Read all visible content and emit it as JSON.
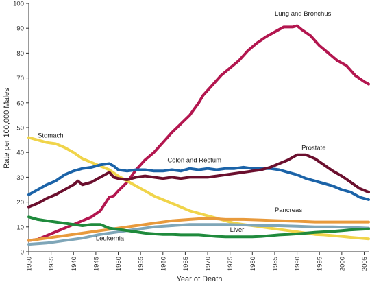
{
  "chart_data": {
    "type": "line",
    "xlabel": "Year of Death",
    "ylabel": "Rate per 100,000 Males",
    "xlim": [
      1930,
      2006
    ],
    "ylim": [
      0,
      100
    ],
    "x_ticks": [
      1930,
      1935,
      1940,
      1945,
      1950,
      1955,
      1960,
      1965,
      1970,
      1975,
      1980,
      1985,
      1990,
      1995,
      2000,
      2005
    ],
    "y_ticks": [
      0,
      10,
      20,
      30,
      40,
      50,
      60,
      70,
      80,
      90,
      100
    ],
    "grid": false,
    "series": [
      {
        "name": "Lung and Bronchus",
        "color": "#b3164f",
        "label_at": [
          1985,
          95
        ],
        "points": [
          [
            1930,
            4.5
          ],
          [
            1932,
            5
          ],
          [
            1934,
            6.5
          ],
          [
            1936,
            8
          ],
          [
            1938,
            9.5
          ],
          [
            1940,
            11
          ],
          [
            1942,
            12.5
          ],
          [
            1944,
            14
          ],
          [
            1946,
            16.5
          ],
          [
            1948,
            22
          ],
          [
            1949,
            22.5
          ],
          [
            1950,
            24.5
          ],
          [
            1952,
            28
          ],
          [
            1954,
            33
          ],
          [
            1956,
            37
          ],
          [
            1958,
            40
          ],
          [
            1960,
            44
          ],
          [
            1962,
            48
          ],
          [
            1964,
            51.5
          ],
          [
            1966,
            55
          ],
          [
            1968,
            60
          ],
          [
            1969,
            63
          ],
          [
            1971,
            67
          ],
          [
            1973,
            71
          ],
          [
            1975,
            74
          ],
          [
            1977,
            77
          ],
          [
            1979,
            81
          ],
          [
            1981,
            84
          ],
          [
            1983,
            86.5
          ],
          [
            1985,
            88.5
          ],
          [
            1987,
            90.5
          ],
          [
            1989,
            90.5
          ],
          [
            1990,
            91
          ],
          [
            1991,
            89.5
          ],
          [
            1993,
            87
          ],
          [
            1995,
            83
          ],
          [
            1997,
            80
          ],
          [
            1999,
            77
          ],
          [
            2001,
            75
          ],
          [
            2003,
            71
          ],
          [
            2005,
            68.5
          ],
          [
            2006,
            67.5
          ]
        ]
      },
      {
        "name": "Stomach",
        "color": "#f0d44a",
        "label_at": [
          1932,
          46
        ],
        "points": [
          [
            1930,
            46
          ],
          [
            1932,
            45
          ],
          [
            1934,
            44
          ],
          [
            1936,
            43.5
          ],
          [
            1938,
            42
          ],
          [
            1940,
            40
          ],
          [
            1942,
            37.5
          ],
          [
            1944,
            36
          ],
          [
            1946,
            34.5
          ],
          [
            1948,
            33
          ],
          [
            1950,
            30.5
          ],
          [
            1952,
            28.5
          ],
          [
            1954,
            26.5
          ],
          [
            1956,
            24.5
          ],
          [
            1958,
            22.5
          ],
          [
            1960,
            21
          ],
          [
            1962,
            19.5
          ],
          [
            1964,
            18
          ],
          [
            1966,
            16.5
          ],
          [
            1968,
            15.5
          ],
          [
            1970,
            14.5
          ],
          [
            1972,
            13.5
          ],
          [
            1974,
            12.5
          ],
          [
            1976,
            11.5
          ],
          [
            1978,
            11
          ],
          [
            1980,
            10.5
          ],
          [
            1982,
            10
          ],
          [
            1984,
            9.5
          ],
          [
            1986,
            9
          ],
          [
            1988,
            8.5
          ],
          [
            1990,
            8
          ],
          [
            1992,
            7.5
          ],
          [
            1994,
            7
          ],
          [
            1996,
            6.8
          ],
          [
            1998,
            6.5
          ],
          [
            2000,
            6.2
          ],
          [
            2002,
            5.8
          ],
          [
            2004,
            5.5
          ],
          [
            2006,
            5.2
          ]
        ]
      },
      {
        "name": "Colon and Rectum",
        "color": "#1b63a8",
        "label_at": [
          1961,
          36
        ],
        "points": [
          [
            1930,
            23
          ],
          [
            1932,
            25
          ],
          [
            1934,
            27
          ],
          [
            1936,
            28.5
          ],
          [
            1938,
            31
          ],
          [
            1940,
            32.5
          ],
          [
            1942,
            33.5
          ],
          [
            1944,
            34
          ],
          [
            1946,
            35
          ],
          [
            1948,
            35.5
          ],
          [
            1949,
            34.5
          ],
          [
            1950,
            33
          ],
          [
            1952,
            32.5
          ],
          [
            1954,
            33
          ],
          [
            1956,
            33
          ],
          [
            1958,
            32.5
          ],
          [
            1960,
            32.5
          ],
          [
            1962,
            33
          ],
          [
            1964,
            32.5
          ],
          [
            1966,
            33.5
          ],
          [
            1968,
            33
          ],
          [
            1970,
            33.5
          ],
          [
            1972,
            33
          ],
          [
            1974,
            33.5
          ],
          [
            1976,
            33.5
          ],
          [
            1978,
            34
          ],
          [
            1980,
            33.5
          ],
          [
            1982,
            33.5
          ],
          [
            1984,
            33.5
          ],
          [
            1986,
            33
          ],
          [
            1988,
            32
          ],
          [
            1990,
            31
          ],
          [
            1992,
            29.5
          ],
          [
            1994,
            28.5
          ],
          [
            1996,
            27.5
          ],
          [
            1998,
            26.5
          ],
          [
            2000,
            25
          ],
          [
            2002,
            24
          ],
          [
            2004,
            22
          ],
          [
            2006,
            21
          ]
        ]
      },
      {
        "name": "Prostate",
        "color": "#6b0f2e",
        "label_at": [
          1991,
          41
        ],
        "points": [
          [
            1930,
            18
          ],
          [
            1932,
            19.5
          ],
          [
            1934,
            21.5
          ],
          [
            1936,
            23
          ],
          [
            1938,
            25
          ],
          [
            1940,
            27
          ],
          [
            1941,
            28.5
          ],
          [
            1942,
            27
          ],
          [
            1944,
            28
          ],
          [
            1946,
            30
          ],
          [
            1948,
            32
          ],
          [
            1949,
            30
          ],
          [
            1950,
            29.5
          ],
          [
            1952,
            29
          ],
          [
            1954,
            30
          ],
          [
            1956,
            30.5
          ],
          [
            1958,
            30
          ],
          [
            1960,
            29.5
          ],
          [
            1962,
            30
          ],
          [
            1964,
            29.5
          ],
          [
            1966,
            30
          ],
          [
            1968,
            30
          ],
          [
            1970,
            30
          ],
          [
            1972,
            30.5
          ],
          [
            1974,
            31
          ],
          [
            1976,
            31.5
          ],
          [
            1978,
            32
          ],
          [
            1980,
            32.5
          ],
          [
            1982,
            33
          ],
          [
            1984,
            34
          ],
          [
            1986,
            35.5
          ],
          [
            1988,
            37
          ],
          [
            1990,
            39
          ],
          [
            1992,
            39
          ],
          [
            1994,
            37.5
          ],
          [
            1996,
            35
          ],
          [
            1998,
            32.5
          ],
          [
            2000,
            30.5
          ],
          [
            2002,
            28
          ],
          [
            2004,
            25.5
          ],
          [
            2006,
            24
          ]
        ]
      },
      {
        "name": "Pancreas",
        "color": "#e89a3c",
        "label_at": [
          1985,
          16
        ],
        "points": [
          [
            1930,
            4.5
          ],
          [
            1934,
            5.5
          ],
          [
            1938,
            6.5
          ],
          [
            1942,
            7.5
          ],
          [
            1946,
            8.5
          ],
          [
            1950,
            9.5
          ],
          [
            1954,
            10.5
          ],
          [
            1958,
            11.5
          ],
          [
            1962,
            12.5
          ],
          [
            1966,
            13
          ],
          [
            1970,
            13.5
          ],
          [
            1974,
            13
          ],
          [
            1978,
            13
          ],
          [
            1982,
            12.8
          ],
          [
            1986,
            12.5
          ],
          [
            1990,
            12.3
          ],
          [
            1994,
            12
          ],
          [
            1998,
            12
          ],
          [
            2002,
            12
          ],
          [
            2006,
            12
          ]
        ]
      },
      {
        "name": "Leukemia",
        "color": "#7fa6b8",
        "label_at": [
          1945,
          4.5
        ],
        "points": [
          [
            1930,
            3
          ],
          [
            1934,
            3.5
          ],
          [
            1938,
            4.5
          ],
          [
            1942,
            5.5
          ],
          [
            1946,
            7
          ],
          [
            1950,
            8
          ],
          [
            1954,
            9
          ],
          [
            1958,
            10
          ],
          [
            1962,
            10.5
          ],
          [
            1966,
            11
          ],
          [
            1970,
            11
          ],
          [
            1974,
            11
          ],
          [
            1978,
            10.8
          ],
          [
            1982,
            10.5
          ],
          [
            1986,
            10.5
          ],
          [
            1990,
            10.3
          ],
          [
            1994,
            10
          ],
          [
            1998,
            10
          ],
          [
            2002,
            9.8
          ],
          [
            2006,
            9.5
          ]
        ]
      },
      {
        "name": "Liver",
        "color": "#1f8a3c",
        "label_at": [
          1975,
          8
        ],
        "points": [
          [
            1930,
            14
          ],
          [
            1932,
            13
          ],
          [
            1934,
            12.5
          ],
          [
            1936,
            12
          ],
          [
            1938,
            11.5
          ],
          [
            1940,
            11
          ],
          [
            1942,
            10.5
          ],
          [
            1944,
            11
          ],
          [
            1946,
            11
          ],
          [
            1948,
            9.5
          ],
          [
            1950,
            9
          ],
          [
            1952,
            8.5
          ],
          [
            1954,
            8
          ],
          [
            1956,
            7.5
          ],
          [
            1958,
            7.2
          ],
          [
            1960,
            7
          ],
          [
            1962,
            7
          ],
          [
            1964,
            6.8
          ],
          [
            1966,
            6.8
          ],
          [
            1968,
            6.8
          ],
          [
            1970,
            6.5
          ],
          [
            1972,
            6.2
          ],
          [
            1974,
            6
          ],
          [
            1976,
            6
          ],
          [
            1978,
            6
          ],
          [
            1980,
            6
          ],
          [
            1982,
            6.2
          ],
          [
            1984,
            6.5
          ],
          [
            1986,
            6.8
          ],
          [
            1988,
            7
          ],
          [
            1990,
            7.2
          ],
          [
            1992,
            7.5
          ],
          [
            1994,
            7.8
          ],
          [
            1996,
            8
          ],
          [
            1998,
            8.2
          ],
          [
            2000,
            8.5
          ],
          [
            2002,
            8.8
          ],
          [
            2004,
            9
          ],
          [
            2006,
            9.2
          ]
        ]
      }
    ]
  }
}
